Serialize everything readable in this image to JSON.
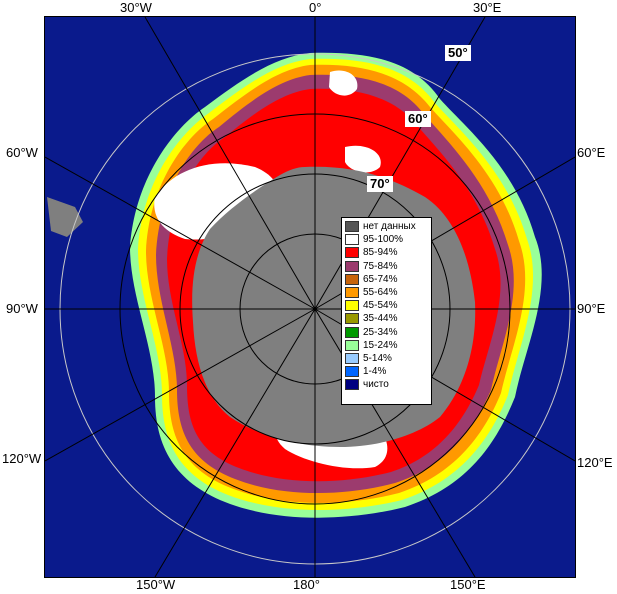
{
  "longitude_labels": {
    "top": [
      "30°W",
      "0°",
      "30°E"
    ],
    "left": [
      "60°W",
      "90°W",
      "120°W"
    ],
    "right": [
      "60°E",
      "90°E",
      "120°E"
    ],
    "bottom": [
      "150°W",
      "180°",
      "150°E"
    ]
  },
  "latitude_labels": [
    "50°",
    "60°",
    "70°"
  ],
  "legend": [
    {
      "label": "нет данных",
      "color": "#555555"
    },
    {
      "label": "95-100%",
      "color": "#ffffff"
    },
    {
      "label": "85-94%",
      "color": "#ff0000"
    },
    {
      "label": "75-84%",
      "color": "#9c3b6e"
    },
    {
      "label": "65-74%",
      "color": "#c8640a"
    },
    {
      "label": "55-64%",
      "color": "#ff9900"
    },
    {
      "label": "45-54%",
      "color": "#ffff00"
    },
    {
      "label": "35-44%",
      "color": "#999900"
    },
    {
      "label": "25-34%",
      "color": "#009900"
    },
    {
      "label": "15-24%",
      "color": "#99ff99"
    },
    {
      "label": "5-14%",
      "color": "#99ccff"
    },
    {
      "label": "1-4%",
      "color": "#0066ff"
    },
    {
      "label": "чисто",
      "color": "#000080"
    }
  ],
  "colors": {
    "open_water": "#0a1a8c",
    "land": "#7f7f7f",
    "no_data": "#555555",
    "graticule": "#c8c8c8"
  }
}
